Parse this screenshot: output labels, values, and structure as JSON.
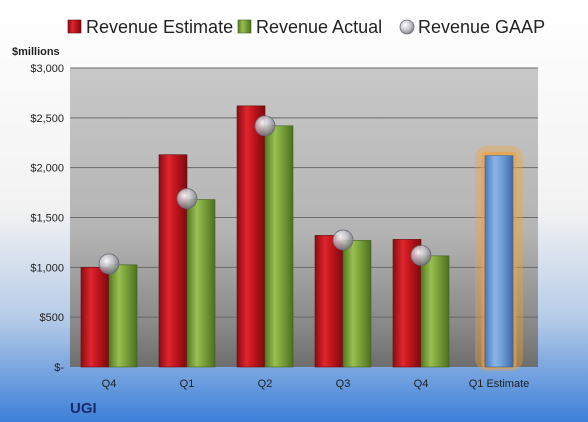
{
  "chart_data": {
    "type": "bar",
    "ticker": "UGI",
    "ylabel": "$millions",
    "categories": [
      "Q4",
      "Q1",
      "Q2",
      "Q3",
      "Q4",
      "Q1 Estimate"
    ],
    "ylim": [
      0,
      3000
    ],
    "yticks": [
      {
        "value": 0,
        "label": "$-"
      },
      {
        "value": 500,
        "label": "$500"
      },
      {
        "value": 1000,
        "label": "$1,000"
      },
      {
        "value": 1500,
        "label": "$1,500"
      },
      {
        "value": 2000,
        "label": "$2,000"
      },
      {
        "value": 2500,
        "label": "$2,500"
      },
      {
        "value": 3000,
        "label": "$3,000"
      }
    ],
    "grid": true,
    "legend_position": "top",
    "series": [
      {
        "name": "Revenue Estimate",
        "kind": "bar",
        "color": "#c0141c",
        "values": [
          1000,
          2130,
          2620,
          1320,
          1280,
          null
        ]
      },
      {
        "name": "Revenue Actual",
        "kind": "bar",
        "color": "#7aa33a",
        "values": [
          1025,
          1680,
          2420,
          1270,
          1115,
          null
        ]
      },
      {
        "name": "Revenue GAAP",
        "kind": "marker",
        "color": "#b8b8c0",
        "values": [
          1035,
          1690,
          2420,
          1275,
          1120,
          null
        ]
      }
    ],
    "estimate": {
      "category_index": 5,
      "value": 2120,
      "color": "#6f9fd8",
      "glow": "#f5a030"
    }
  }
}
